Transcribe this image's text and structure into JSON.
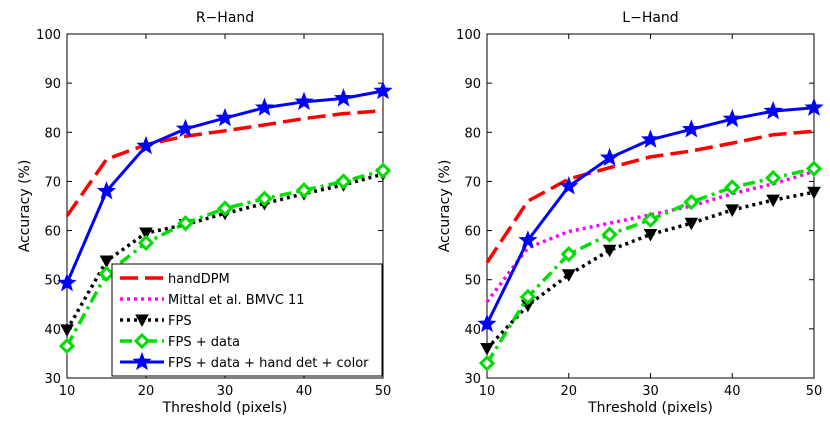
{
  "chart_data": [
    {
      "type": "line",
      "title": "R−Hand",
      "xlabel": "Threshold (pixels)",
      "ylabel": "Accuracy (%)",
      "xlim": [
        10,
        50
      ],
      "ylim": [
        30,
        100
      ],
      "xticks": [
        "10",
        "20",
        "30",
        "40",
        "50"
      ],
      "yticks": [
        "30",
        "40",
        "50",
        "60",
        "70",
        "80",
        "90",
        "100"
      ],
      "x": [
        10,
        15,
        20,
        25,
        30,
        35,
        40,
        45,
        50
      ],
      "legend": "lower-right",
      "series": [
        {
          "name": "handDPM",
          "color": "#ff0000",
          "style": "dashed",
          "marker": "none",
          "values": [
            63,
            74.5,
            77.5,
            79.2,
            80.3,
            81.5,
            82.8,
            83.8,
            84.4
          ]
        },
        {
          "name": "Mittal et al. BMVC 11",
          "color": "#ff00ff",
          "style": "dotted",
          "marker": "none",
          "values": [
            null,
            null,
            null,
            null,
            null,
            null,
            null,
            null,
            null
          ]
        },
        {
          "name": "FPS",
          "color": "#000000",
          "style": "dotted",
          "marker": "triangle-down",
          "values": [
            39.8,
            53.8,
            59.5,
            61.2,
            63.5,
            65.5,
            67.5,
            69.3,
            71.5
          ]
        },
        {
          "name": "FPS + data",
          "color": "#00dd00",
          "style": "dashdot",
          "marker": "diamond",
          "values": [
            36.5,
            51.2,
            57.5,
            61.5,
            64.5,
            66.5,
            68.2,
            70,
            72.2
          ]
        },
        {
          "name": "FPS + data + hand det + color",
          "color": "#0000ff",
          "style": "solid",
          "marker": "star",
          "values": [
            49.3,
            68,
            77.2,
            80.7,
            82.9,
            85,
            86.2,
            86.9,
            88.4
          ]
        }
      ]
    },
    {
      "type": "line",
      "title": "L−Hand",
      "xlabel": "Threshold  (pixels)",
      "ylabel": "Accuracy (%)",
      "xlim": [
        10,
        50
      ],
      "ylim": [
        30,
        100
      ],
      "xticks": [
        "10",
        "20",
        "30",
        "40",
        "50"
      ],
      "yticks": [
        "30",
        "40",
        "50",
        "60",
        "70",
        "80",
        "90",
        "100"
      ],
      "x": [
        10,
        15,
        20,
        25,
        30,
        35,
        40,
        45,
        50
      ],
      "series": [
        {
          "name": "handDPM",
          "color": "#ff0000",
          "style": "dashed",
          "marker": "none",
          "values": [
            53.5,
            66,
            70.5,
            72.8,
            75,
            76.2,
            77.8,
            79.5,
            80.2
          ]
        },
        {
          "name": "Mittal et al. BMVC 11",
          "color": "#ff00ff",
          "style": "dotted",
          "marker": "none",
          "values": [
            45.5,
            56.5,
            59.8,
            61.5,
            63.2,
            65,
            67.5,
            69.5,
            72
          ]
        },
        {
          "name": "FPS",
          "color": "#000000",
          "style": "dotted",
          "marker": "triangle-down",
          "values": [
            36,
            44.8,
            51,
            56,
            59.2,
            61.5,
            64.2,
            66.2,
            67.8
          ]
        },
        {
          "name": "FPS + data",
          "color": "#00dd00",
          "style": "dashdot",
          "marker": "diamond",
          "values": [
            33,
            46.5,
            55.2,
            59.2,
            62.2,
            65.8,
            68.8,
            70.7,
            72.6
          ]
        },
        {
          "name": "FPS + data + hand det + color",
          "color": "#0000ff",
          "style": "solid",
          "marker": "star",
          "values": [
            41,
            58,
            69,
            74.8,
            78.5,
            80.6,
            82.7,
            84.3,
            85
          ]
        }
      ]
    }
  ]
}
